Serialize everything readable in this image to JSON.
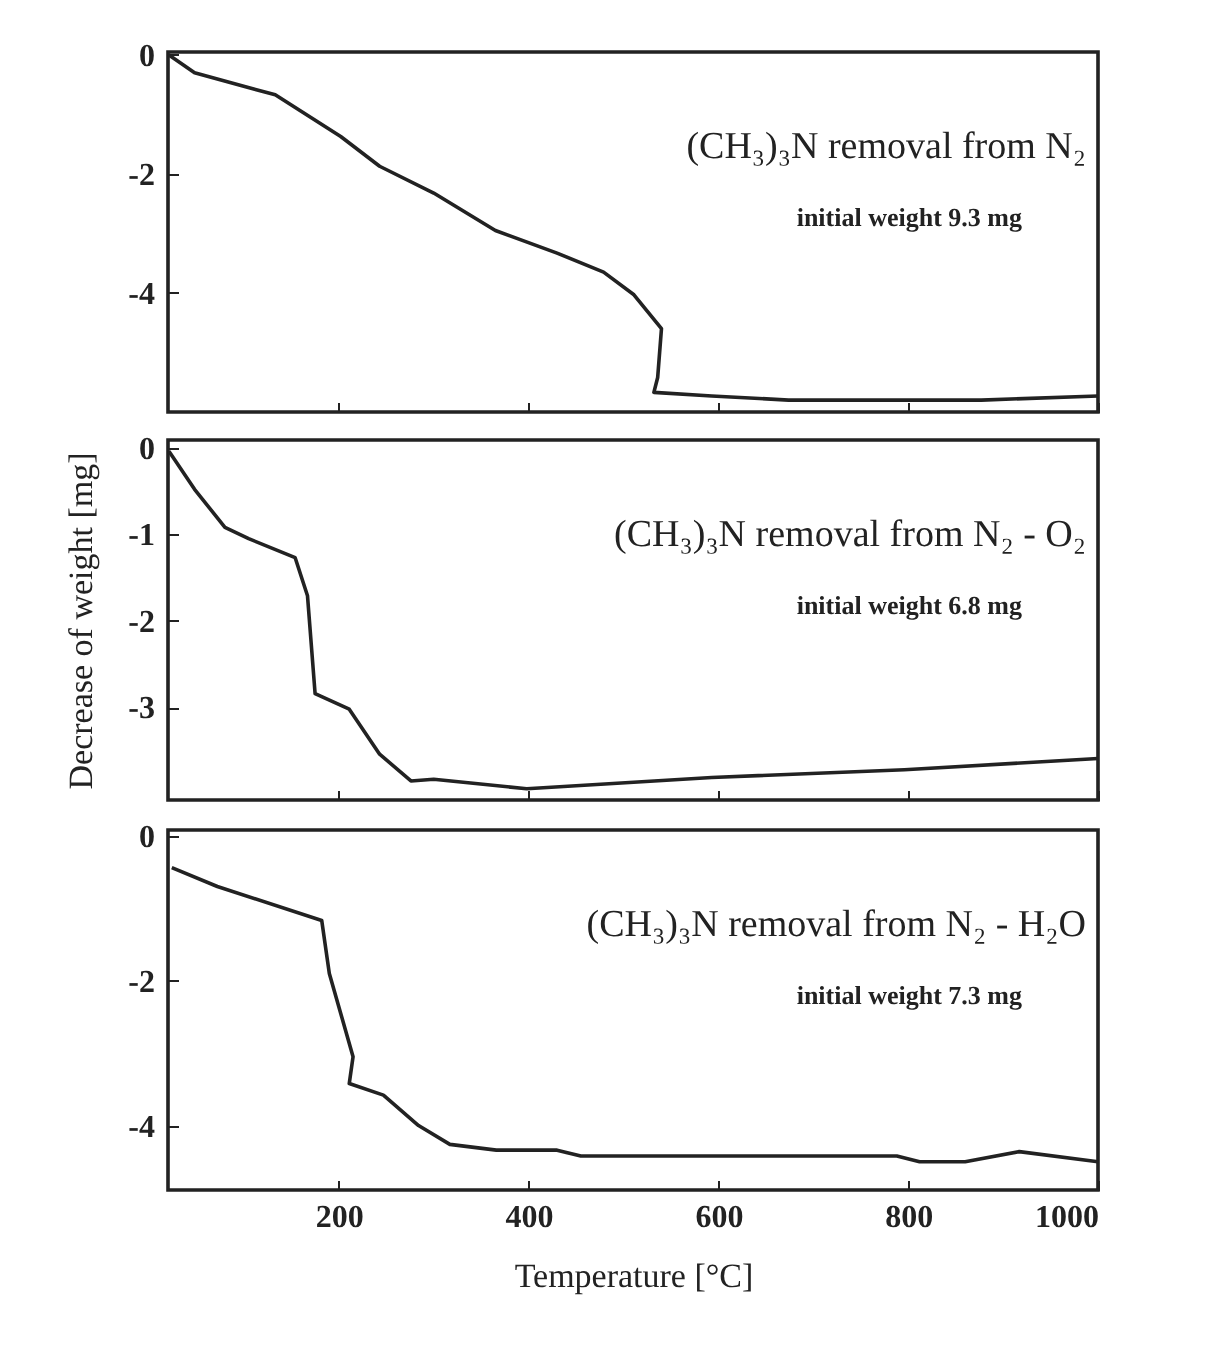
{
  "chart_data": [
    {
      "type": "line",
      "x": [
        21,
        48,
        133,
        202,
        243,
        300,
        365,
        430,
        479,
        511,
        540,
        536,
        532,
        593,
        674,
        877,
        1000
      ],
      "values": [
        0,
        -0.3,
        -0.67,
        -1.37,
        -1.87,
        -2.32,
        -2.95,
        -3.33,
        -3.65,
        -4.03,
        -4.6,
        -5.42,
        -5.67,
        -5.73,
        -5.8,
        -5.8,
        -5.73
      ],
      "color": "#222222",
      "xlim": [
        20,
        1000
      ],
      "xticks": [
        200,
        400,
        600,
        800,
        1000
      ],
      "ylim": [
        -6,
        0.05
      ],
      "yticks": [
        0,
        -2,
        -4
      ],
      "tick_labels": "y",
      "annotations": [
        "(CH₃)₃N removal from N₂",
        "initial weight 9.3 mg"
      ]
    },
    {
      "type": "line",
      "x": [
        21,
        48,
        80,
        105,
        154,
        167,
        175,
        211,
        243,
        276,
        300,
        398,
        593,
        796,
        1000
      ],
      "values": [
        -0.04,
        -0.48,
        -0.92,
        -1.05,
        -1.27,
        -1.71,
        -2.84,
        -3.02,
        -3.54,
        -3.85,
        -3.83,
        -3.94,
        -3.81,
        -3.72,
        -3.59
      ],
      "color": "#222222",
      "xlim": [
        20,
        1000
      ],
      "xticks": [
        200,
        400,
        600,
        800,
        1000
      ],
      "ylim": [
        -4.07,
        0.09
      ],
      "yticks": [
        0,
        -1,
        -2,
        -3
      ],
      "tick_labels": "y",
      "ylabel": "Decrease of weight    [mg]",
      "annotations": [
        "(CH₃)₃N removal from N₂ - O₂",
        "initial weight 6.8 mg"
      ]
    },
    {
      "type": "line",
      "x": [
        24,
        72,
        182,
        190,
        215,
        211,
        247,
        284,
        317,
        366,
        430,
        455,
        788,
        812,
        860,
        917,
        1000
      ],
      "values": [
        -0.44,
        -0.7,
        -1.17,
        -1.9,
        -3.05,
        -3.42,
        -3.58,
        -4,
        -4.26,
        -4.34,
        -4.34,
        -4.42,
        -4.42,
        -4.5,
        -4.5,
        -4.36,
        -4.5
      ],
      "color": "#222222",
      "xlim": [
        20,
        1000
      ],
      "xticks": [
        200,
        400,
        600,
        800,
        1000
      ],
      "ylim": [
        -4.89,
        0.08
      ],
      "yticks": [
        0,
        -2,
        -4
      ],
      "xlabel": "Temperature    [°C]",
      "annotations": [
        "(CH₃)₃N removal from N₂ - H₂O",
        "initial weight 7.3 mg"
      ]
    }
  ]
}
